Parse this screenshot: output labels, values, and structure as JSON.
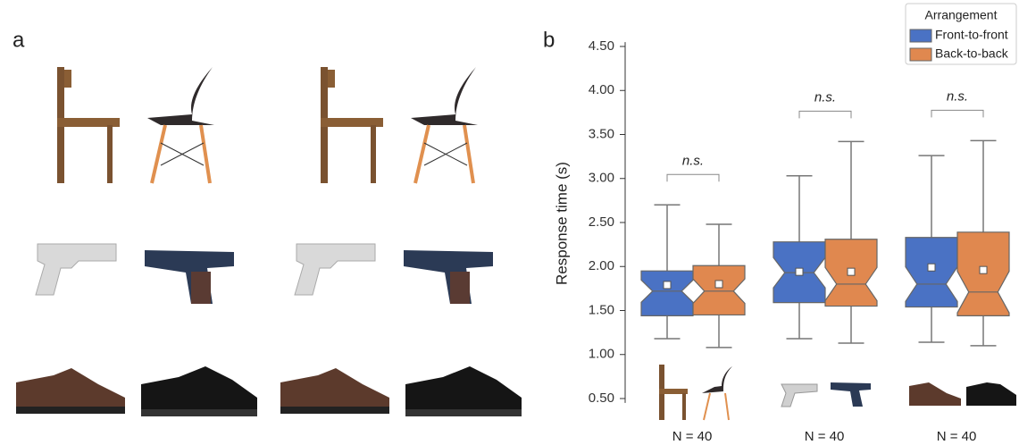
{
  "panel_labels": [
    "a",
    "b"
  ],
  "chart_data": {
    "type": "box",
    "y_label": "Response time (s)",
    "categories": [
      null,
      null,
      null
    ],
    "group_labels": [
      "N = 40",
      "N = 40",
      "N = 40"
    ],
    "annotations": [
      "n.s.",
      "n.s.",
      "n.s."
    ],
    "legend_title": "Arrangement",
    "legend_position": "upper right",
    "ylim": [
      0.45,
      4.55
    ],
    "yticks": [
      {
        "value": 0.5,
        "label": "0.50"
      },
      {
        "value": 1.0,
        "label": "1.00"
      },
      {
        "value": 1.5,
        "label": "1.50"
      },
      {
        "value": 2.0,
        "label": "2.00"
      },
      {
        "value": 2.5,
        "label": "2.50"
      },
      {
        "value": 3.0,
        "label": "3.00"
      },
      {
        "value": 3.5,
        "label": "3.50"
      },
      {
        "value": 4.0,
        "label": "4.00"
      },
      {
        "value": 4.5,
        "label": "4.50"
      }
    ],
    "series": [
      {
        "name": "Front-to-front",
        "color": "#4a72c4",
        "min": [
          1.18,
          1.18,
          1.14
        ],
        "q1": [
          1.44,
          1.59,
          1.54
        ],
        "median": [
          1.72,
          1.93,
          1.8
        ],
        "q3": [
          1.95,
          2.28,
          2.33
        ],
        "max": [
          2.7,
          3.03,
          3.26
        ],
        "mean": [
          1.79,
          1.94,
          1.99
        ]
      },
      {
        "name": "Back-to-back",
        "color": "#e0884f",
        "min": [
          1.08,
          1.13,
          1.1
        ],
        "q1": [
          1.45,
          1.55,
          1.44
        ],
        "median": [
          1.72,
          1.8,
          1.71
        ],
        "q3": [
          2.01,
          2.31,
          2.39
        ],
        "max": [
          2.48,
          3.42,
          3.43
        ],
        "mean": [
          1.8,
          1.94,
          1.96
        ]
      }
    ]
  }
}
